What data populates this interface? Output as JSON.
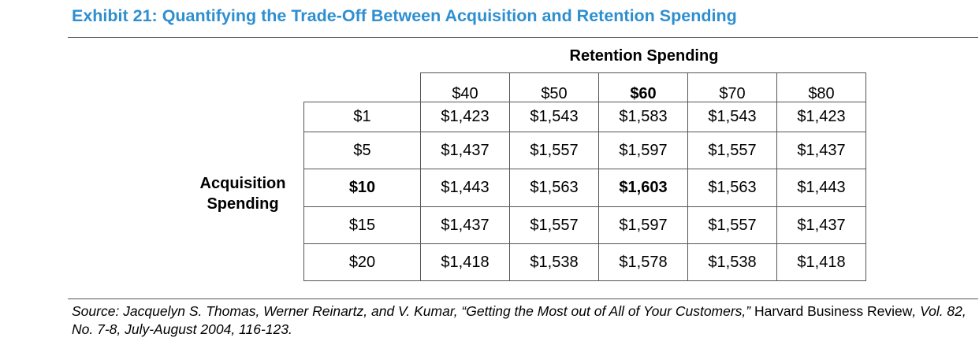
{
  "exhibit": {
    "title": "Exhibit 21: Quantifying the Trade-Off Between Acquisition and Retention Spending"
  },
  "table": {
    "column_heading": "Retention Spending",
    "row_heading_line1": "Acquisition",
    "row_heading_line2": "Spending",
    "columns": [
      "$40",
      "$50",
      "$60",
      "$70",
      "$80"
    ],
    "rows": [
      {
        "label": "$1",
        "values": [
          "$1,423",
          "$1,543",
          "$1,583",
          "$1,543",
          "$1,423"
        ]
      },
      {
        "label": "$5",
        "values": [
          "$1,437",
          "$1,557",
          "$1,597",
          "$1,557",
          "$1,437"
        ]
      },
      {
        "label": "$10",
        "values": [
          "$1,443",
          "$1,563",
          "$1,603",
          "$1,563",
          "$1,443"
        ]
      },
      {
        "label": "$15",
        "values": [
          "$1,437",
          "$1,557",
          "$1,597",
          "$1,557",
          "$1,437"
        ]
      },
      {
        "label": "$20",
        "values": [
          "$1,418",
          "$1,538",
          "$1,578",
          "$1,538",
          "$1,418"
        ]
      }
    ]
  },
  "source": {
    "part1": "Source: Jacquelyn S. Thomas, Werner Reinartz, and V. Kumar, “Getting the Most out of All of Your Customers,”",
    "part2": " Harvard Business Review",
    "part3": ", Vol. 82, No. 7-8, July-August 2004, 116-123."
  },
  "colors": {
    "title": "#2e8fd0",
    "rule": "#555555"
  }
}
